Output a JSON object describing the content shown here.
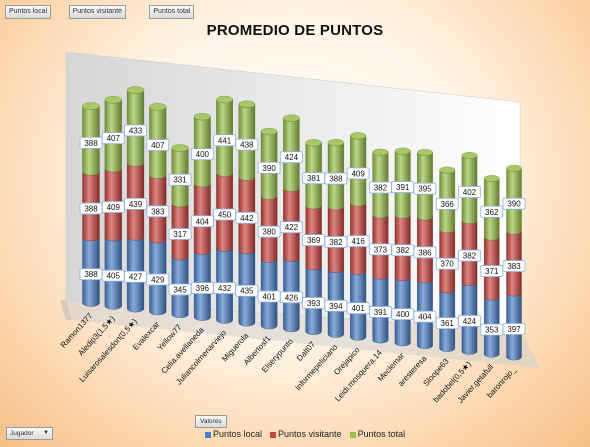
{
  "pivot_fields": [
    "Puntos local",
    "Puntos visitante",
    "Puntos total"
  ],
  "values_button": "Valores",
  "row_field": {
    "label": "Jugador",
    "icon": "dropdown-arrow-icon"
  },
  "colors": {
    "local": "#4a7ec6",
    "visitante": "#c9443f",
    "total": "#98bf4a"
  },
  "chart_data": {
    "type": "bar",
    "stacked": true,
    "three_d": "cylinder",
    "title": "PROMEDIO DE PUNTOS",
    "legend_position": "bottom",
    "categories": [
      "Ramon1377",
      "Aledip3(1,5★)",
      "Luisarosalesdon(0,5★)",
      "Evalexcar",
      "Yellow77",
      "Celia.avellaneda",
      "Juliancolmenarviejo",
      "Miguerola",
      "Albertosf1",
      "Elserypunto",
      "Dalt07",
      "Informepeliciano",
      "Orejapico",
      "Leidi.mosquera.14",
      "Meclemar",
      "aresteresa",
      "Sloope63",
      "badobel(0,5★)",
      "Javier.getafull",
      "baronrojo_"
    ],
    "series": [
      {
        "name": "Puntos local",
        "values": [
          388,
          405,
          427,
          429,
          345,
          396,
          432,
          435,
          401,
          426,
          393,
          394,
          401,
          391,
          400,
          404,
          361,
          424,
          353,
          397
        ]
      },
      {
        "name": "Puntos visitante",
        "values": [
          388,
          409,
          439,
          383,
          317,
          404,
          450,
          442,
          380,
          422,
          369,
          382,
          416,
          373,
          382,
          386,
          370,
          382,
          371,
          383
        ]
      },
      {
        "name": "Puntos total",
        "values": [
          388,
          407,
          433,
          407,
          331,
          400,
          441,
          438,
          390,
          424,
          381,
          388,
          409,
          382,
          391,
          395,
          366,
          402,
          362,
          390
        ]
      }
    ],
    "grid": false
  }
}
